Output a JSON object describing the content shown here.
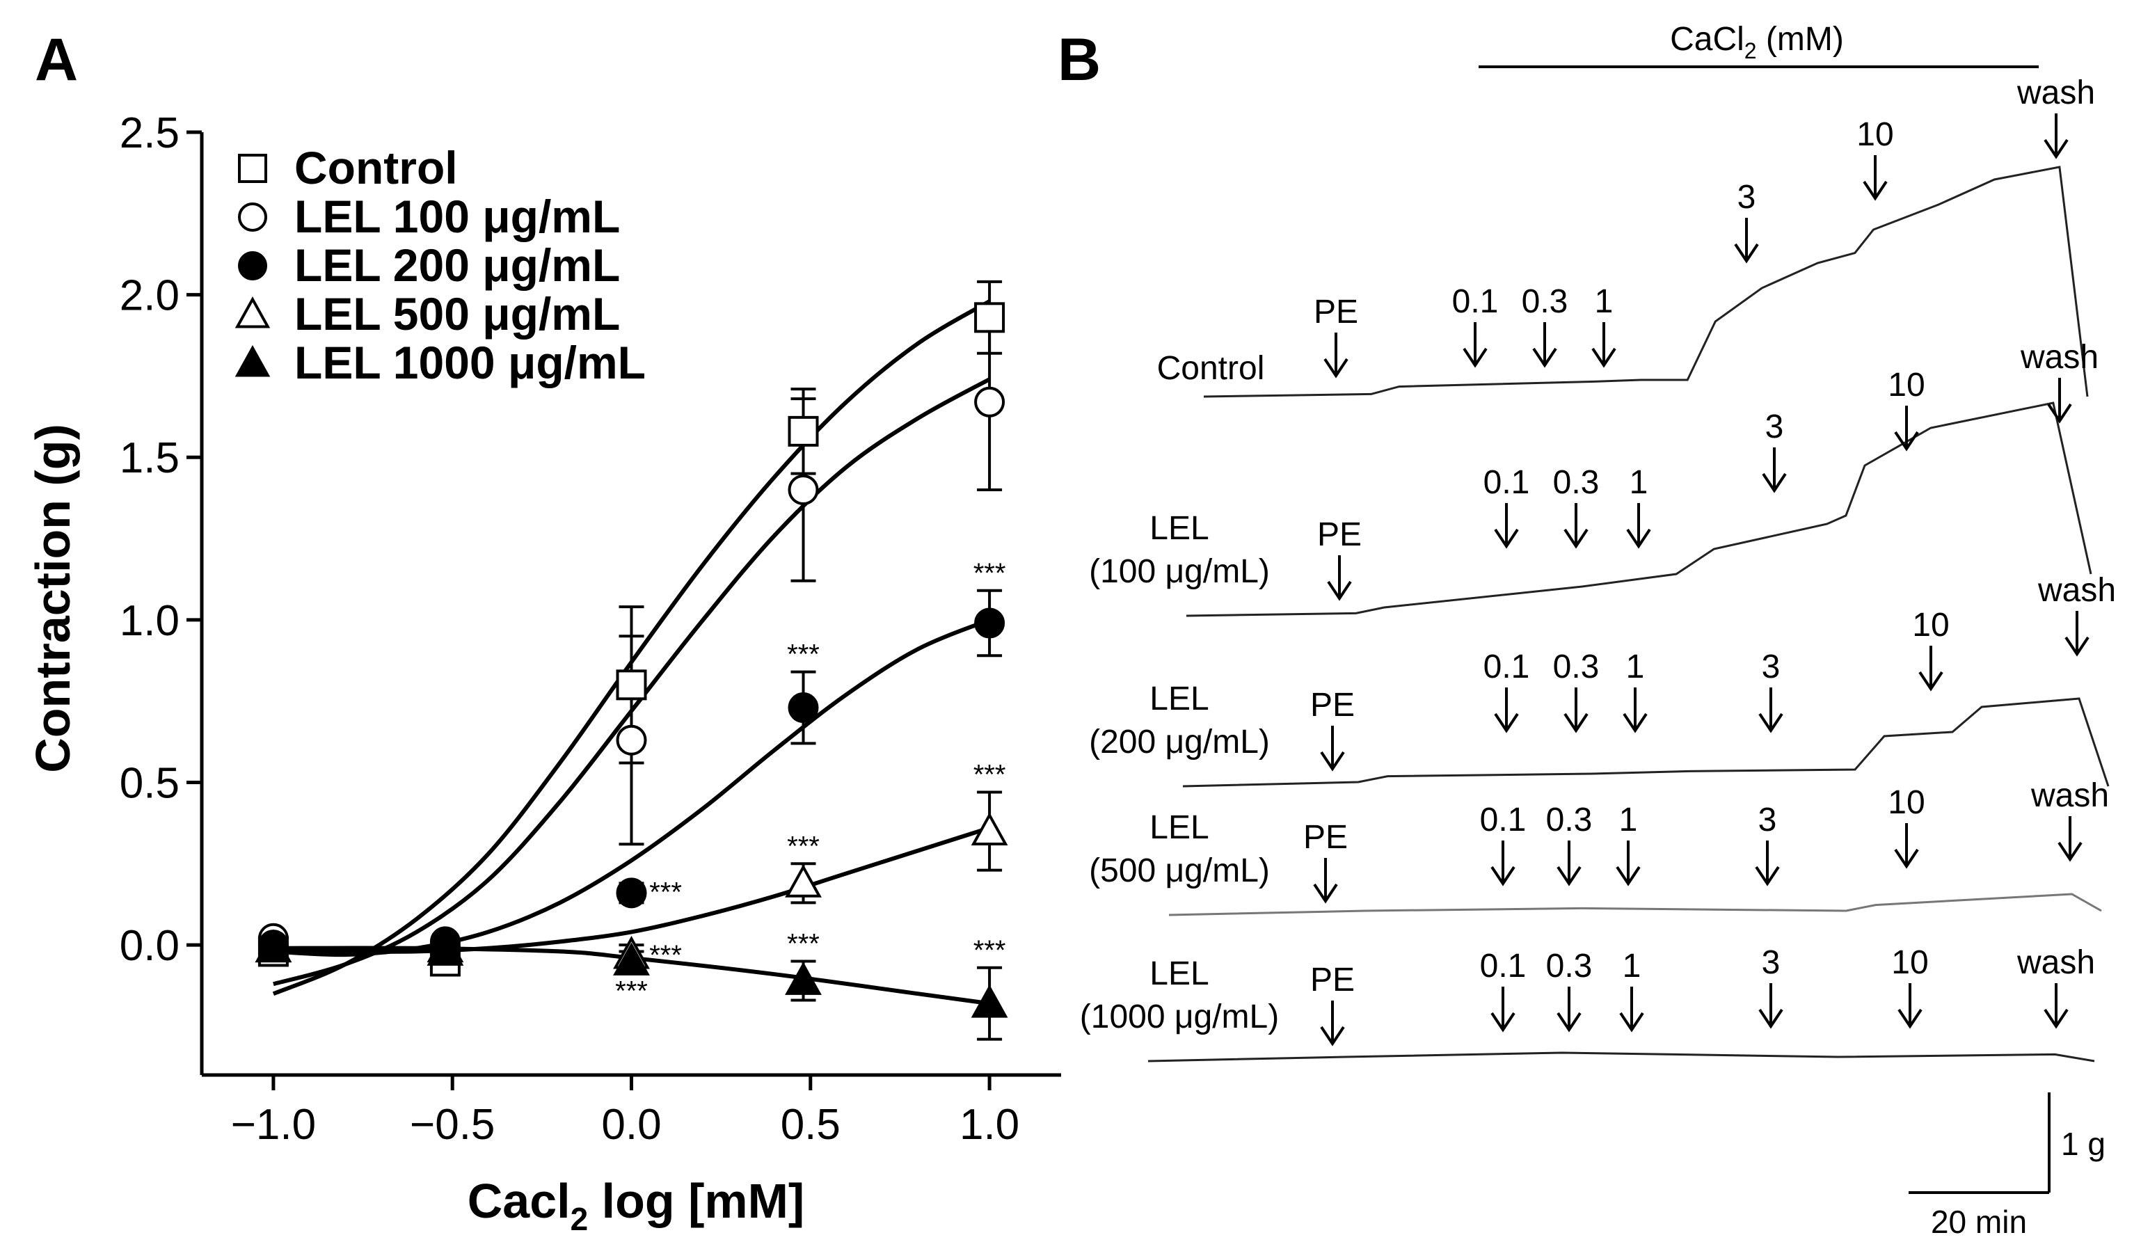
{
  "panels": {
    "a_label": "A",
    "b_label": "B"
  },
  "chart_data": [
    {
      "panel": "A",
      "type": "scatter",
      "title": "",
      "xlabel_main": "Cacl",
      "xlabel_sub": "2",
      "xlabel_rest": " log [mM]",
      "ylabel": "Contraction (g)",
      "xlim": [
        -1.2,
        1.2
      ],
      "ylim": [
        -0.4,
        2.5
      ],
      "xticks": [
        -1.0,
        -0.5,
        0.0,
        0.5,
        1.0
      ],
      "xtick_labels": [
        "−1.0",
        "−0.5",
        "0.0",
        "0.5",
        "1.0"
      ],
      "yticks": [
        0.0,
        0.5,
        1.0,
        1.5,
        2.0,
        2.5
      ],
      "ytick_labels": [
        "0.0",
        "0.5",
        "1.0",
        "1.5",
        "2.0",
        "2.5"
      ],
      "x": [
        -1.0,
        -0.52,
        0.0,
        0.48,
        1.0
      ],
      "legend_position": "top-left",
      "series": [
        {
          "name": "Control",
          "marker": "square-open",
          "values": [
            -0.02,
            -0.05,
            0.8,
            1.58,
            1.93
          ],
          "errors": [
            0.02,
            0.02,
            0.24,
            0.13,
            0.11
          ],
          "fit": [
            [
              -1.0,
              -0.15
            ],
            [
              -0.8,
              -0.06
            ],
            [
              -0.6,
              0.08
            ],
            [
              -0.4,
              0.28
            ],
            [
              -0.2,
              0.56
            ],
            [
              0.0,
              0.87
            ],
            [
              0.2,
              1.17
            ],
            [
              0.4,
              1.44
            ],
            [
              0.6,
              1.67
            ],
            [
              0.8,
              1.85
            ],
            [
              1.0,
              1.98
            ]
          ],
          "sig": [
            "",
            "",
            "",
            "",
            ""
          ]
        },
        {
          "name": "LEL 100 μg/mL",
          "marker": "circle-open",
          "values": [
            0.02,
            0.0,
            0.63,
            1.4,
            1.67
          ],
          "errors": [
            0.02,
            0.02,
            0.32,
            0.28,
            0.27
          ],
          "fit": [
            [
              -1.0,
              -0.12
            ],
            [
              -0.8,
              -0.06
            ],
            [
              -0.6,
              0.04
            ],
            [
              -0.4,
              0.2
            ],
            [
              -0.2,
              0.44
            ],
            [
              0.0,
              0.72
            ],
            [
              0.2,
              1.0
            ],
            [
              0.4,
              1.26
            ],
            [
              0.6,
              1.47
            ],
            [
              0.8,
              1.62
            ],
            [
              1.0,
              1.74
            ]
          ],
          "sig": [
            "",
            "",
            "",
            "",
            ""
          ]
        },
        {
          "name": "LEL 200 μg/mL",
          "marker": "circle-filled",
          "values": [
            0.0,
            0.01,
            0.16,
            0.73,
            0.99
          ],
          "errors": [
            0.02,
            0.02,
            0.03,
            0.11,
            0.1
          ],
          "fit": [
            [
              -1.0,
              -0.02
            ],
            [
              -0.8,
              -0.03
            ],
            [
              -0.6,
              -0.01
            ],
            [
              -0.4,
              0.04
            ],
            [
              -0.2,
              0.13
            ],
            [
              0.0,
              0.26
            ],
            [
              0.2,
              0.42
            ],
            [
              0.4,
              0.6
            ],
            [
              0.6,
              0.77
            ],
            [
              0.8,
              0.91
            ],
            [
              1.0,
              1.0
            ]
          ],
          "sig": [
            "",
            "",
            "***",
            "***",
            "***"
          ]
        },
        {
          "name": "LEL 500 μg/mL",
          "marker": "triangle-open",
          "values": [
            -0.01,
            -0.01,
            -0.03,
            0.19,
            0.35
          ],
          "errors": [
            0.02,
            0.02,
            0.03,
            0.06,
            0.12
          ],
          "fit": [
            [
              -1.0,
              -0.02
            ],
            [
              -0.8,
              -0.02
            ],
            [
              -0.6,
              -0.02
            ],
            [
              -0.4,
              -0.01
            ],
            [
              -0.2,
              0.01
            ],
            [
              0.0,
              0.04
            ],
            [
              0.2,
              0.09
            ],
            [
              0.4,
              0.15
            ],
            [
              0.6,
              0.22
            ],
            [
              0.8,
              0.29
            ],
            [
              1.0,
              0.36
            ]
          ],
          "sig": [
            "",
            "",
            "***",
            "***",
            "***"
          ]
        },
        {
          "name": "LEL 1000 μg/mL",
          "marker": "triangle-filled",
          "values": [
            -0.01,
            -0.02,
            -0.05,
            -0.11,
            -0.18
          ],
          "errors": [
            0.02,
            0.02,
            0.03,
            0.06,
            0.11
          ],
          "fit": [
            [
              -1.0,
              -0.01
            ],
            [
              -0.6,
              -0.01
            ],
            [
              -0.2,
              -0.02
            ],
            [
              0.0,
              -0.04
            ],
            [
              0.4,
              -0.09
            ],
            [
              0.8,
              -0.15
            ],
            [
              1.0,
              -0.18
            ]
          ],
          "sig": [
            "",
            "",
            "***",
            "***",
            "***"
          ]
        }
      ]
    },
    {
      "panel": "B",
      "type": "line",
      "title": "CaCl2 (mM)",
      "title_main": "CaCl",
      "title_sub": "2",
      "title_rest": " (mM)",
      "x_unit": "min",
      "x_range_min": [
        0,
        145
      ],
      "scale_bar_y": "1 g",
      "scale_bar_x": "20 min",
      "series": [
        {
          "label_lines": [
            "Control"
          ],
          "markers": [
            {
              "text": "PE",
              "t": 20
            },
            {
              "text": "0.1",
              "t": 42
            },
            {
              "text": "0.3",
              "t": 47
            },
            {
              "text": "1",
              "t": 52
            },
            {
              "text": "3",
              "t": 70
            },
            {
              "text": "10",
              "t": 79
            },
            {
              "text": "wash",
              "t": 92
            }
          ],
          "trace_g": [
            [
              0,
              0.0
            ],
            [
              18,
              0.03
            ],
            [
              21,
              0.12
            ],
            [
              42,
              0.18
            ],
            [
              47,
              0.2
            ],
            [
              52,
              0.2
            ],
            [
              55,
              0.9
            ],
            [
              60,
              1.3
            ],
            [
              66,
              1.6
            ],
            [
              70,
              1.72
            ],
            [
              72,
              2.0
            ],
            [
              79,
              2.3
            ],
            [
              85,
              2.6
            ],
            [
              92,
              2.75
            ],
            [
              95,
              0.0
            ]
          ]
        },
        {
          "label_lines": [
            "LEL",
            "(100 μg/mL)"
          ],
          "markers": [
            {
              "text": "PE",
              "t": 20
            },
            {
              "text": "0.1",
              "t": 42
            },
            {
              "text": "0.3",
              "t": 47
            },
            {
              "text": "1",
              "t": 52
            },
            {
              "text": "3",
              "t": 70
            },
            {
              "text": "10",
              "t": 79
            },
            {
              "text": "wash",
              "t": 92
            }
          ],
          "trace_g": [
            [
              0,
              0.0
            ],
            [
              18,
              0.03
            ],
            [
              21,
              0.1
            ],
            [
              42,
              0.35
            ],
            [
              52,
              0.5
            ],
            [
              56,
              0.8
            ],
            [
              68,
              1.1
            ],
            [
              70,
              1.2
            ],
            [
              72,
              1.8
            ],
            [
              79,
              2.25
            ],
            [
              92,
              2.55
            ],
            [
              96,
              0.5
            ]
          ]
        },
        {
          "label_lines": [
            "LEL",
            "(200 μg/mL)"
          ],
          "markers": [
            {
              "text": "PE",
              "t": 20
            },
            {
              "text": "0.1",
              "t": 42
            },
            {
              "text": "0.3",
              "t": 47
            },
            {
              "text": "1",
              "t": 52
            },
            {
              "text": "3",
              "t": 70
            },
            {
              "text": "10",
              "t": 79
            },
            {
              "text": "wash",
              "t": 92
            }
          ],
          "trace_g": [
            [
              0,
              0.0
            ],
            [
              18,
              0.05
            ],
            [
              21,
              0.12
            ],
            [
              42,
              0.15
            ],
            [
              52,
              0.18
            ],
            [
              69,
              0.2
            ],
            [
              72,
              0.6
            ],
            [
              79,
              0.65
            ],
            [
              82,
              0.95
            ],
            [
              92,
              1.05
            ],
            [
              95,
              0.0
            ]
          ]
        },
        {
          "label_lines": [
            "LEL",
            "(500 μg/mL)"
          ],
          "markers": [
            {
              "text": "PE",
              "t": 20
            },
            {
              "text": "0.1",
              "t": 42
            },
            {
              "text": "0.3",
              "t": 47
            },
            {
              "text": "1",
              "t": 52
            },
            {
              "text": "3",
              "t": 70
            },
            {
              "text": "10",
              "t": 79
            },
            {
              "text": "wash",
              "t": 92
            }
          ],
          "trace_g": [
            [
              0,
              0.0
            ],
            [
              20,
              0.05
            ],
            [
              42,
              0.08
            ],
            [
              69,
              0.05
            ],
            [
              72,
              0.12
            ],
            [
              92,
              0.25
            ],
            [
              95,
              0.05
            ]
          ]
        },
        {
          "label_lines": [
            "LEL",
            "(1000 μg/mL)"
          ],
          "markers": [
            {
              "text": "PE",
              "t": 20
            },
            {
              "text": "0.1",
              "t": 42
            },
            {
              "text": "0.3",
              "t": 47
            },
            {
              "text": "1",
              "t": 52
            },
            {
              "text": "3",
              "t": 70
            },
            {
              "text": "10",
              "t": 79
            },
            {
              "text": "wash",
              "t": 92
            }
          ],
          "trace_g": [
            [
              0,
              0.0
            ],
            [
              20,
              0.05
            ],
            [
              42,
              0.1
            ],
            [
              70,
              0.05
            ],
            [
              92,
              0.08
            ],
            [
              96,
              0.0
            ]
          ]
        }
      ]
    }
  ]
}
